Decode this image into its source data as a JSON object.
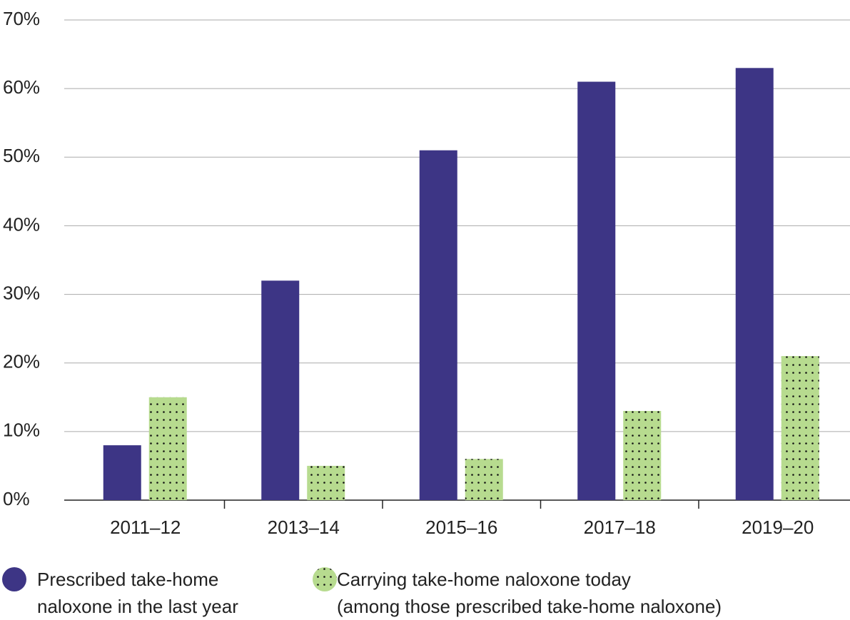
{
  "chart_data": {
    "type": "bar",
    "categories": [
      "2011–12",
      "2013–14",
      "2015–16",
      "2017–18",
      "2019–20"
    ],
    "series": [
      {
        "name": "Prescribed take-home\nnaloxone in the last year",
        "color": "#3d3585",
        "values": [
          8,
          32,
          51,
          61,
          63
        ]
      },
      {
        "name": "Carrying take-home naloxone today\n(among those prescribed take-home naloxone)",
        "color": "#b7db8f",
        "values": [
          15,
          5,
          6,
          13,
          21
        ]
      }
    ],
    "ylim": [
      0,
      70
    ],
    "yticks": [
      {
        "value": 0,
        "label": "0%"
      },
      {
        "value": 10,
        "label": "10%"
      },
      {
        "value": 20,
        "label": "20%"
      },
      {
        "value": 30,
        "label": "30%"
      },
      {
        "value": 40,
        "label": "40%"
      },
      {
        "value": 50,
        "label": "50%"
      },
      {
        "value": 60,
        "label": "60%"
      },
      {
        "value": 70,
        "label": "70%"
      }
    ],
    "grid": true
  }
}
